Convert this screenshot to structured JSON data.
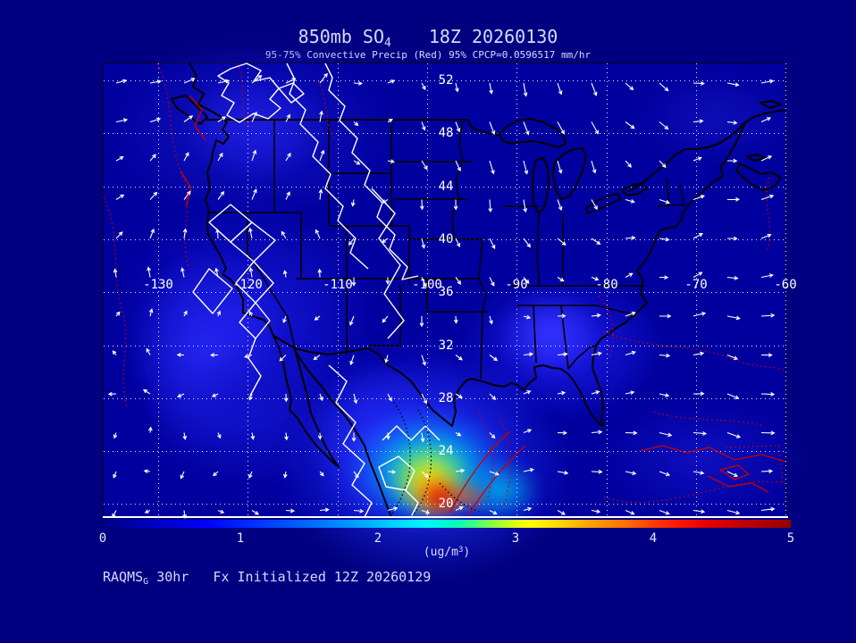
{
  "title": {
    "prefix": "850mb SO",
    "sub": "4",
    "time": "18Z 20260130"
  },
  "subtitle": "95-75% Convective Precip (Red) 95% CPCP=0.0596517 mm/hr",
  "footer": {
    "model": "RAQMS",
    "model_sub": "G",
    "text": " 30hr   Fx Initialized 12Z 20260129"
  },
  "map": {
    "lat_labels": [
      "52",
      "48",
      "44",
      "40",
      "36",
      "32",
      "28",
      "24",
      "20"
    ],
    "lon_labels": [
      "-130",
      "-120",
      "-110",
      "-100",
      "-90",
      "-80",
      "-70",
      "-60"
    ]
  },
  "colorbar": {
    "tick_labels": [
      "0",
      "1",
      "2",
      "3",
      "4",
      "5"
    ],
    "min": 0,
    "max": 5,
    "unit_prefix": "(ug/m",
    "unit_sup": "3",
    "unit_suffix": ")"
  },
  "colors": {
    "background": "#000080",
    "text": "#d8d8ff",
    "graticule": "#ffffff",
    "precip_contour_red": "#c80000",
    "coastline": "#000000",
    "wind_vectors": "#ffffff"
  }
}
